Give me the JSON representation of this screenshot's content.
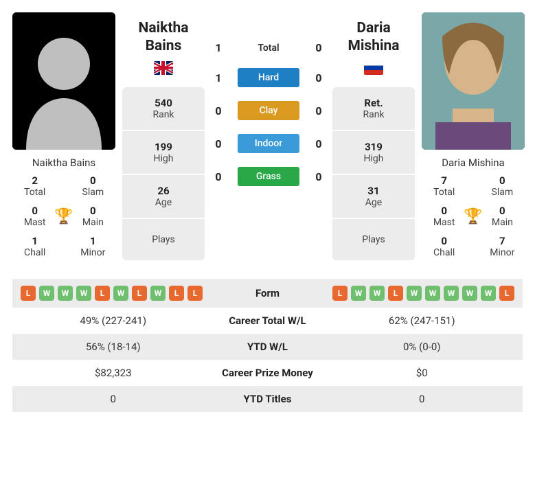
{
  "players": {
    "p1": {
      "name": "Naiktha Bains",
      "firstName": "Naiktha",
      "lastName": "Bains",
      "flag": "uk",
      "rank": "540",
      "high": "199",
      "age": "26",
      "plays": "",
      "titles": {
        "total": "2",
        "slam": "0",
        "mast": "0",
        "main": "0",
        "chall": "1",
        "minor": "1"
      },
      "form": [
        "L",
        "W",
        "W",
        "W",
        "L",
        "W",
        "L",
        "W",
        "L",
        "L"
      ],
      "careerWL": "49% (227-241)",
      "ytdWL": "56% (18-14)",
      "prize": "$82,323",
      "ytdTitles": "0"
    },
    "p2": {
      "name": "Daria Mishina",
      "firstName": "Daria",
      "lastName": "Mishina",
      "flag": "ru",
      "rank": "Ret.",
      "high": "319",
      "age": "31",
      "plays": "",
      "titles": {
        "total": "7",
        "slam": "0",
        "mast": "0",
        "main": "0",
        "chall": "0",
        "minor": "7"
      },
      "form": [
        "L",
        "W",
        "W",
        "L",
        "W",
        "W",
        "W",
        "W",
        "W",
        "L"
      ],
      "careerWL": "62% (247-151)",
      "ytdWL": "0% (0-0)",
      "prize": "$0",
      "ytdTitles": "0"
    }
  },
  "labels": {
    "rank": "Rank",
    "high": "High",
    "age": "Age",
    "plays": "Plays",
    "total": "Total",
    "slam": "Slam",
    "mast": "Mast",
    "main": "Main",
    "chall": "Chall",
    "minor": "Minor",
    "form": "Form",
    "careerWL": "Career Total W/L",
    "ytdWL": "YTD W/L",
    "prize": "Career Prize Money",
    "ytdTitles": "YTD Titles"
  },
  "h2h": {
    "rows": [
      {
        "p1": "1",
        "label": "Total",
        "p2": "0",
        "color": null
      },
      {
        "p1": "1",
        "label": "Hard",
        "p2": "0",
        "color": "#1f7fc4"
      },
      {
        "p1": "0",
        "label": "Clay",
        "p2": "0",
        "color": "#d99a1f"
      },
      {
        "p1": "0",
        "label": "Indoor",
        "p2": "0",
        "color": "#3a9bd8"
      },
      {
        "p1": "0",
        "label": "Grass",
        "p2": "0",
        "color": "#2aa847"
      }
    ]
  }
}
